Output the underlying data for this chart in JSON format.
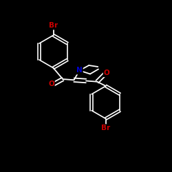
{
  "background_color": "#000000",
  "bond_color": "#ffffff",
  "atom_colors": {
    "Br": "#cc0000",
    "O": "#cc0000",
    "N": "#0000cc"
  },
  "fig_size": [
    2.5,
    2.5
  ],
  "dpi": 100
}
